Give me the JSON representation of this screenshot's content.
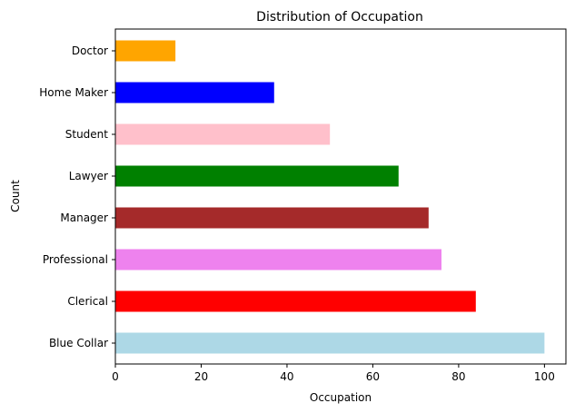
{
  "chart_data": {
    "type": "bar",
    "orientation": "horizontal",
    "title": "Distribution of Occupation",
    "xlabel": "Occupation",
    "ylabel": "Count",
    "xlim": [
      0,
      105
    ],
    "xticks": [
      0,
      20,
      40,
      60,
      80,
      100
    ],
    "grid": false,
    "categories": [
      "Blue Collar",
      "Clerical",
      "Professional",
      "Manager",
      "Lawyer",
      "Student",
      "Home Maker",
      "Doctor"
    ],
    "values": [
      100,
      84,
      76,
      73,
      66,
      50,
      37,
      14
    ],
    "colors": [
      "#add8e6",
      "#ff0000",
      "#ee82ee",
      "#a52a2a",
      "#008000",
      "#ffc0cb",
      "#0000ff",
      "#ffa500"
    ]
  }
}
